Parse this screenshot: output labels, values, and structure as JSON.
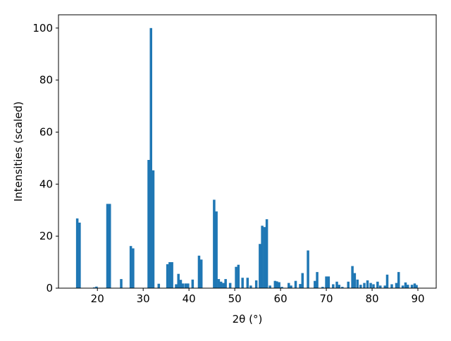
{
  "chart_data": {
    "type": "bar",
    "xlabel": "2θ (°)",
    "ylabel": "Intensities (scaled)",
    "color": "#1f77b4",
    "x": [
      15.6,
      16.1,
      19.3,
      19.8,
      22.2,
      22.7,
      25.2,
      27.3,
      27.8,
      31.2,
      31.7,
      32.2,
      33.4,
      35.3,
      35.8,
      36.3,
      37.2,
      37.7,
      38.2,
      38.7,
      39.3,
      39.8,
      40.8,
      42.2,
      42.7,
      45.5,
      46,
      46.5,
      47,
      47.5,
      48,
      49,
      50.3,
      50.8,
      51.7,
      52.8,
      53.5,
      54.7,
      55.5,
      56,
      56.5,
      57,
      57.7,
      58.8,
      59.2,
      59.7,
      60.3,
      61.8,
      62.3,
      63.3,
      64.3,
      64.8,
      66,
      67.5,
      68,
      69.2,
      70,
      70.5,
      71.5,
      72.3,
      72.8,
      73.5,
      74.8,
      75.7,
      76.2,
      76.8,
      77.5,
      78.3,
      79,
      79.7,
      80.3,
      81.2,
      81.8,
      82.8,
      83.3,
      84.3,
      85.3,
      85.8,
      86.7,
      87.3,
      87.8,
      88.7,
      89.3,
      89.7
    ],
    "values": [
      26.8,
      25.2,
      0.3,
      0.6,
      32.4,
      32.4,
      3.5,
      16.2,
      15.3,
      49.3,
      100,
      45.3,
      1.7,
      9.2,
      10,
      10,
      1.5,
      5.5,
      3.2,
      1.8,
      1.8,
      1.8,
      3.3,
      12.5,
      11,
      34,
      29.5,
      3.5,
      2.5,
      2,
      3.5,
      2,
      8.2,
      9,
      4,
      4,
      1,
      3,
      17,
      24,
      23.5,
      26.5,
      1,
      2.8,
      2.6,
      2.3,
      0.5,
      2,
      1,
      2.8,
      1.6,
      5.8,
      14.5,
      2.8,
      6.2,
      0.5,
      4.5,
      4.5,
      1.5,
      2.5,
      1.3,
      0.5,
      2.5,
      8.5,
      5.8,
      3.3,
      1.3,
      2,
      3,
      2,
      1.5,
      2.5,
      1,
      1,
      5.2,
      1.5,
      2,
      6.2,
      1,
      2.2,
      1.3,
      1.3,
      1.8,
      1.2
    ],
    "xlim": [
      11.5,
      94
    ],
    "xticks": [
      20,
      30,
      40,
      50,
      60,
      70,
      80,
      90
    ],
    "ylim": [
      0,
      105.1
    ],
    "yticks": [
      0,
      20,
      40,
      60,
      80,
      100
    ]
  }
}
